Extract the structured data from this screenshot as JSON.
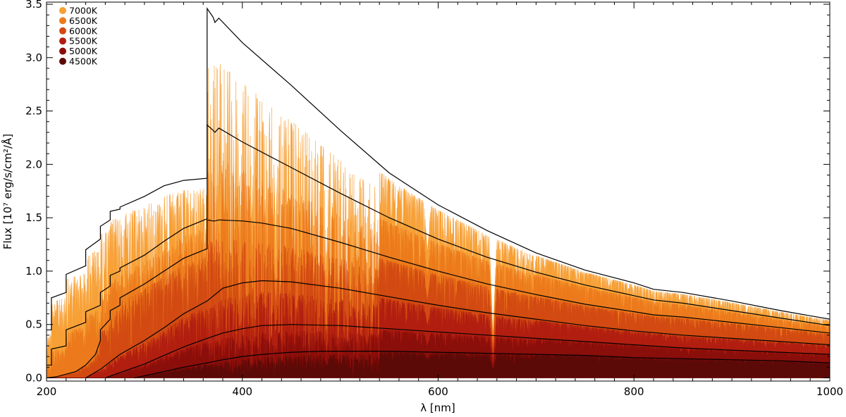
{
  "chart_data": {
    "type": "area",
    "title": "",
    "xlabel": "λ [nm]",
    "ylabel": "Flux [10⁷ erg/s/cm²/Å]",
    "xlim": [
      200,
      1000
    ],
    "ylim": [
      -0.03,
      3.52
    ],
    "xticks": [
      200,
      400,
      600,
      800,
      1000
    ],
    "xtick_labels": [
      "200",
      "400",
      "600",
      "800",
      "1000"
    ],
    "yticks": [
      0.0,
      0.5,
      1.0,
      1.5,
      2.0,
      2.5,
      3.0,
      3.5
    ],
    "ytick_labels": [
      "0.0",
      "0.5",
      "1.0",
      "1.5",
      "2.0",
      "2.5",
      "3.0",
      "3.5"
    ],
    "grid": false,
    "legend": "top-left",
    "series": [
      {
        "name": "7000K",
        "color": "#F7A035",
        "continuum": {
          "x": [
            200,
            205,
            205,
            220,
            220,
            240,
            240,
            255,
            255,
            265,
            265,
            275,
            275,
            300,
            320,
            340,
            364,
            364,
            370,
            372,
            376,
            400,
            450,
            500,
            550,
            600,
            650,
            700,
            750,
            800,
            820,
            850,
            900,
            950,
            1000
          ],
          "y": [
            0.45,
            0.45,
            0.75,
            0.8,
            0.97,
            1.05,
            1.2,
            1.3,
            1.42,
            1.48,
            1.56,
            1.58,
            1.6,
            1.7,
            1.8,
            1.85,
            1.87,
            3.46,
            3.38,
            3.33,
            3.37,
            3.14,
            2.74,
            2.32,
            1.92,
            1.62,
            1.38,
            1.17,
            1.01,
            0.89,
            0.83,
            0.8,
            0.72,
            0.63,
            0.55
          ]
        }
      },
      {
        "name": "6500K",
        "color": "#EC7A1C",
        "continuum": {
          "x": [
            200,
            205,
            205,
            220,
            220,
            240,
            240,
            255,
            255,
            265,
            265,
            275,
            275,
            300,
            320,
            340,
            364,
            364,
            370,
            372,
            376,
            400,
            450,
            500,
            550,
            600,
            650,
            700,
            750,
            800,
            820,
            850,
            900,
            950,
            1000
          ],
          "y": [
            0.12,
            0.12,
            0.27,
            0.3,
            0.45,
            0.52,
            0.62,
            0.68,
            0.8,
            0.86,
            0.96,
            1.0,
            1.03,
            1.15,
            1.28,
            1.4,
            1.49,
            2.37,
            2.32,
            2.3,
            2.34,
            2.21,
            1.97,
            1.73,
            1.5,
            1.3,
            1.13,
            0.99,
            0.87,
            0.77,
            0.73,
            0.7,
            0.63,
            0.56,
            0.49
          ]
        }
      },
      {
        "name": "6000K",
        "color": "#D24A12",
        "continuum": {
          "x": [
            200,
            210,
            230,
            240,
            250,
            255,
            255,
            265,
            265,
            275,
            275,
            300,
            320,
            340,
            364,
            364,
            370,
            372,
            376,
            400,
            420,
            450,
            500,
            550,
            600,
            650,
            700,
            750,
            800,
            820,
            850,
            900,
            950,
            1000
          ],
          "y": [
            0.0,
            0.01,
            0.06,
            0.12,
            0.22,
            0.35,
            0.45,
            0.55,
            0.63,
            0.68,
            0.75,
            0.88,
            1.0,
            1.12,
            1.21,
            1.48,
            1.47,
            1.47,
            1.48,
            1.47,
            1.45,
            1.4,
            1.27,
            1.13,
            1.0,
            0.88,
            0.78,
            0.69,
            0.62,
            0.59,
            0.57,
            0.52,
            0.47,
            0.42
          ]
        }
      },
      {
        "name": "5500K",
        "color": "#B11E10",
        "continuum": {
          "x": [
            240,
            255,
            265,
            275,
            300,
            320,
            340,
            364,
            380,
            400,
            420,
            450,
            500,
            550,
            600,
            650,
            700,
            750,
            800,
            850,
            900,
            950,
            1000
          ],
          "y": [
            0.0,
            0.08,
            0.15,
            0.22,
            0.35,
            0.47,
            0.6,
            0.72,
            0.84,
            0.89,
            0.91,
            0.9,
            0.84,
            0.76,
            0.68,
            0.61,
            0.55,
            0.49,
            0.44,
            0.4,
            0.37,
            0.34,
            0.31
          ]
        }
      },
      {
        "name": "5000K",
        "color": "#8A0E0A",
        "continuum": {
          "x": [
            260,
            275,
            300,
            320,
            340,
            364,
            380,
            400,
            420,
            450,
            500,
            550,
            600,
            650,
            700,
            750,
            800,
            850,
            900,
            950,
            1000
          ],
          "y": [
            0.0,
            0.05,
            0.13,
            0.21,
            0.29,
            0.37,
            0.42,
            0.46,
            0.49,
            0.5,
            0.49,
            0.46,
            0.43,
            0.4,
            0.37,
            0.34,
            0.31,
            0.28,
            0.26,
            0.24,
            0.22
          ]
        }
      },
      {
        "name": "4500K",
        "color": "#5C0A08",
        "continuum": {
          "x": [
            290,
            300,
            320,
            340,
            364,
            380,
            400,
            420,
            450,
            480,
            500,
            550,
            600,
            650,
            700,
            750,
            800,
            850,
            900,
            950,
            1000
          ],
          "y": [
            0.0,
            0.02,
            0.06,
            0.1,
            0.14,
            0.17,
            0.2,
            0.22,
            0.24,
            0.25,
            0.25,
            0.25,
            0.24,
            0.23,
            0.22,
            0.21,
            0.19,
            0.18,
            0.17,
            0.16,
            0.14
          ]
        }
      }
    ]
  }
}
